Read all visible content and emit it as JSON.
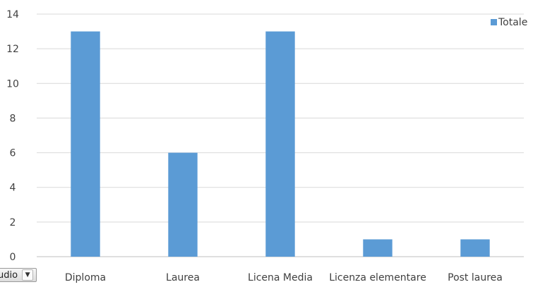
{
  "chart_data": {
    "type": "bar",
    "categories": [
      "Diploma",
      "Laurea",
      "Licena Media",
      "Licenza elementare",
      "Post laurea"
    ],
    "series": [
      {
        "name": "Totale",
        "values": [
          13,
          6,
          13,
          1,
          1
        ],
        "color": "#5b9bd5"
      }
    ],
    "ylim": [
      0,
      14
    ],
    "yticks": [
      0,
      2,
      4,
      6,
      8,
      10,
      12,
      14
    ],
    "grid": true,
    "legend_position": "top-right"
  },
  "filter_button": {
    "label": "udio",
    "icon": "chevron-down-icon"
  }
}
